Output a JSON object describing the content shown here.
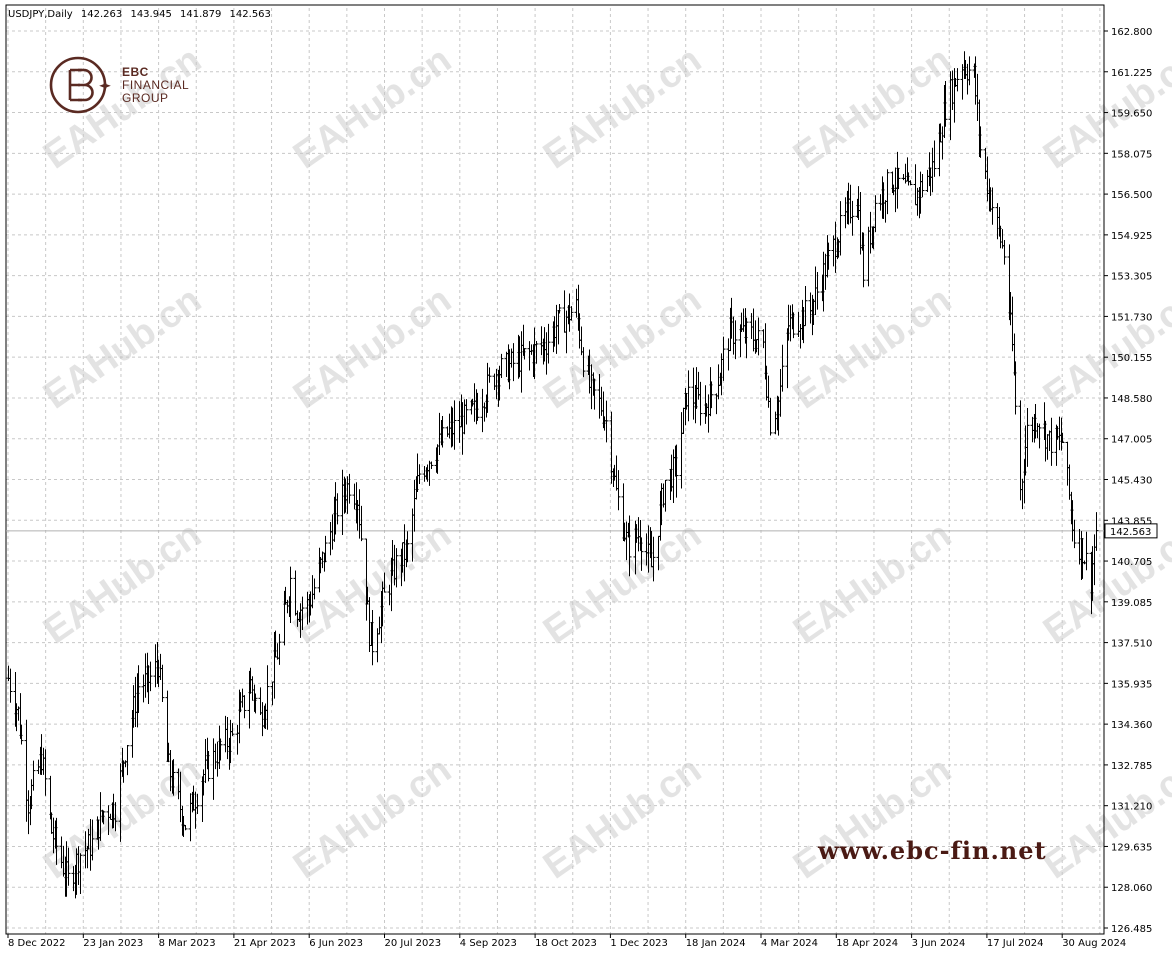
{
  "header": {
    "symbol": "USDJPY,Daily",
    "open": "142.263",
    "high": "143.945",
    "low": "141.879",
    "close": "142.563"
  },
  "logo": {
    "line1": "EBC",
    "line2": "FINANCIAL",
    "line3": "GROUP",
    "color": "#5a2a22"
  },
  "website": "www.ebc-fin.net",
  "watermark": "EAHub.cn",
  "chart_data": {
    "type": "ohlc",
    "price_axis": {
      "min": 126.485,
      "max": 162.8,
      "ticks": [
        "162.800",
        "161.225",
        "159.650",
        "158.075",
        "156.500",
        "154.925",
        "153.305",
        "151.730",
        "150.155",
        "148.580",
        "147.005",
        "145.430",
        "143.855",
        "142.563",
        "140.705",
        "139.085",
        "137.510",
        "135.935",
        "134.360",
        "132.785",
        "131.210",
        "129.635",
        "128.060",
        "126.485"
      ]
    },
    "time_axis": {
      "labels": [
        "8 Dec 2022",
        "23 Jan 2023",
        "8 Mar 2023",
        "21 Apr 2023",
        "6 Jun 2023",
        "20 Jul 2023",
        "4 Sep 2023",
        "18 Oct 2023",
        "1 Dec 2023",
        "18 Jan 2024",
        "4 Mar 2024",
        "18 Apr 2024",
        "3 Jun 2024",
        "17 Jul 2024",
        "30 Aug 2024"
      ]
    },
    "current_price": 142.563,
    "grid": true,
    "bar_color": "#000000",
    "keypoints": [
      [
        "8 Dec 2022",
        136.6
      ],
      [
        "14 Dec 2022",
        135.2
      ],
      [
        "20 Dec 2022",
        131.6
      ],
      [
        "28 Dec 2022",
        133.4
      ],
      [
        "3 Jan 2023",
        130.4
      ],
      [
        "13 Jan 2023",
        128.4
      ],
      [
        "20 Jan 2023",
        129.5
      ],
      [
        "27 Jan 2023",
        129.9
      ],
      [
        "3 Feb 2023",
        131.2
      ],
      [
        "10 Feb 2023",
        131.4
      ],
      [
        "17 Feb 2023",
        134.1
      ],
      [
        "24 Feb 2023",
        136.3
      ],
      [
        "2 Mar 2023",
        136.5
      ],
      [
        "8 Mar 2023",
        137.2
      ],
      [
        "13 Mar 2023",
        133.2
      ],
      [
        "24 Mar 2023",
        130.7
      ],
      [
        "29 Mar 2023",
        131.6
      ],
      [
        "3 Apr 2023",
        132.6
      ],
      [
        "14 Apr 2023",
        133.8
      ],
      [
        "21 Apr 2023",
        134.2
      ],
      [
        "2 May 2023",
        136.4
      ],
      [
        "8 May 2023",
        135.0
      ],
      [
        "19 May 2023",
        137.9
      ],
      [
        "26 May 2023",
        140.6
      ],
      [
        "30 May 2023",
        139.4
      ],
      [
        "6 Jun 2023",
        139.6
      ],
      [
        "16 Jun 2023",
        141.8
      ],
      [
        "23 Jun 2023",
        143.5
      ],
      [
        "30 Jun 2023",
        144.5
      ],
      [
        "5 Jul 2023",
        143.9
      ],
      [
        "12 Jul 2023",
        138.5
      ],
      [
        "14 Jul 2023",
        138.0
      ],
      [
        "20 Jul 2023",
        139.7
      ],
      [
        "28 Jul 2023",
        141.2
      ],
      [
        "4 Aug 2023",
        141.8
      ],
      [
        "11 Aug 2023",
        144.9
      ],
      [
        "21 Aug 2023",
        145.9
      ],
      [
        "28 Aug 2023",
        146.5
      ],
      [
        "4 Sep 2023",
        146.9
      ],
      [
        "13 Sep 2023",
        147.4
      ],
      [
        "26 Sep 2023",
        149.0
      ],
      [
        "3 Oct 2023",
        149.2
      ],
      [
        "12 Oct 2023",
        149.6
      ],
      [
        "18 Oct 2023",
        149.8
      ],
      [
        "26 Oct 2023",
        150.2
      ],
      [
        "1 Nov 2023",
        150.9
      ],
      [
        "13 Nov 2023",
        151.6
      ],
      [
        "17 Nov 2023",
        149.6
      ],
      [
        "21 Nov 2023",
        148.4
      ],
      [
        "28 Nov 2023",
        147.6
      ],
      [
        "1 Dec 2023",
        147.0
      ],
      [
        "7 Dec 2023",
        144.1
      ],
      [
        "14 Dec 2023",
        141.9
      ],
      [
        "21 Dec 2023",
        142.5
      ],
      [
        "28 Dec 2023",
        141.1
      ],
      [
        "5 Jan 2024",
        144.6
      ],
      [
        "12 Jan 2024",
        145.1
      ],
      [
        "18 Jan 2024",
        148.1
      ],
      [
        "29 Jan 2024",
        147.6
      ],
      [
        "5 Feb 2024",
        148.5
      ],
      [
        "13 Feb 2024",
        150.6
      ],
      [
        "26 Feb 2024",
        150.5
      ],
      [
        "4 Mar 2024",
        150.1
      ],
      [
        "8 Mar 2024",
        147.0
      ],
      [
        "13 Mar 2024",
        147.8
      ],
      [
        "19 Mar 2024",
        150.9
      ],
      [
        "1 Apr 2024",
        151.5
      ],
      [
        "10 Apr 2024",
        153.2
      ],
      [
        "18 Apr 2024",
        154.6
      ],
      [
        "29 Apr 2024",
        156.2
      ],
      [
        "3 May 2024",
        153.0
      ],
      [
        "10 May 2024",
        155.8
      ],
      [
        "20 May 2024",
        156.8
      ],
      [
        "3 Jun 2024",
        156.1
      ],
      [
        "14 Jun 2024",
        157.4
      ],
      [
        "21 Jun 2024",
        159.8
      ],
      [
        "1 Jul 2024",
        161.5
      ],
      [
        "8 Jul 2024",
        161.0
      ],
      [
        "12 Jul 2024",
        158.0
      ],
      [
        "17 Jul 2024",
        156.3
      ],
      [
        "26 Jul 2024",
        153.8
      ],
      [
        "31 Jul 2024",
        150.0
      ],
      [
        "5 Aug 2024",
        144.2
      ],
      [
        "9 Aug 2024",
        146.6
      ],
      [
        "15 Aug 2024",
        147.2
      ],
      [
        "22 Aug 2024",
        146.2
      ],
      [
        "30 Aug 2024",
        146.2
      ],
      [
        "6 Sep 2024",
        142.3
      ],
      [
        "11 Sep 2024",
        141.8
      ],
      [
        "16 Sep 2024",
        140.6
      ],
      [
        "19 Sep 2024",
        142.563
      ]
    ]
  }
}
